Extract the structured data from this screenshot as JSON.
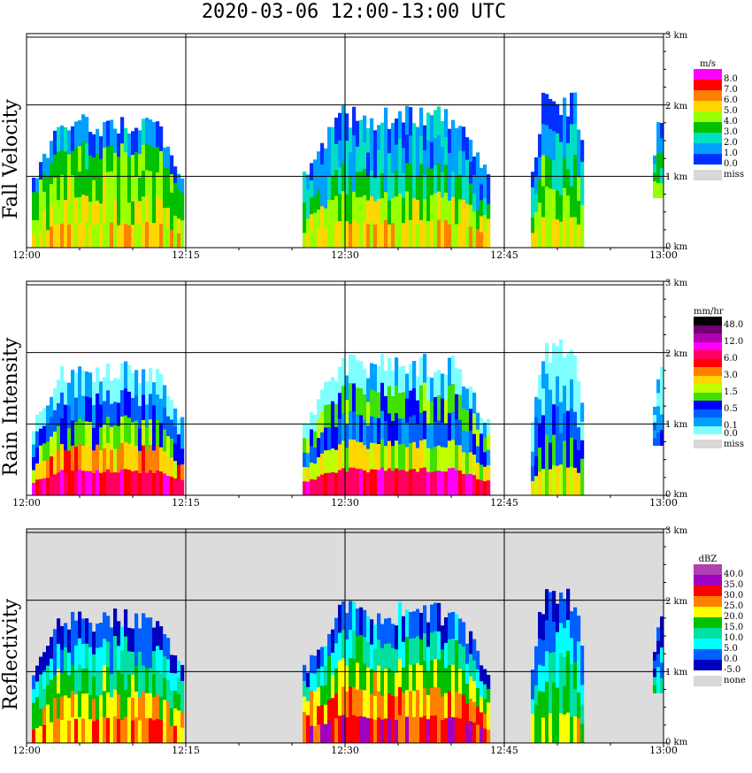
{
  "title": "2020-03-06  12:00-13:00 UTC",
  "chart_data": [
    {
      "type": "heatmap",
      "title": "Fall Velocity",
      "ylabel": "Fall Velocity",
      "x_ticks": [
        "12:00",
        "12:15",
        "12:30",
        "12:45",
        "13:00"
      ],
      "y_ticks": [
        "0 km",
        "1 km",
        "2 km",
        "3 km"
      ],
      "ylim_km": [
        0,
        3.0
      ],
      "xlim_min": [
        0,
        60
      ],
      "grid": true,
      "colorbar": {
        "unit": "m/s",
        "labels": [
          "8.0",
          "7.0",
          "6.0",
          "5.0",
          "4.0",
          "3.0",
          "2.0",
          "1.0",
          "0.0",
          "miss"
        ],
        "colors": [
          "#ff00ff",
          "#ff0000",
          "#ff8000",
          "#ffd700",
          "#9aff00",
          "#00c000",
          "#00e0c0",
          "#00a0ff",
          "#0030ff",
          "#d8d8d8"
        ]
      },
      "background": "#ffffff",
      "echoes": [
        {
          "t0": 0.5,
          "t1": 14.7,
          "top": 1.9,
          "base": 0.0,
          "profile": [
            0.4,
            0.45,
            0.55,
            0.6,
            0.9
          ]
        },
        {
          "t0": 26.0,
          "t1": 43.5,
          "top": 2.0,
          "base": 0.0,
          "profile": [
            0.4,
            0.5,
            0.7,
            0.85,
            0.9
          ]
        },
        {
          "t0": 47.5,
          "t1": 52.5,
          "top": 2.2,
          "base": 0.0,
          "profile": [
            0.45,
            0.55,
            0.65,
            0.8,
            0.95
          ]
        },
        {
          "t0": 59.0,
          "t1": 59.9,
          "top": 1.8,
          "base": 0.7,
          "profile": [
            0.5,
            0.6,
            0.7,
            0.85,
            0.95
          ]
        }
      ]
    },
    {
      "type": "heatmap",
      "title": "Rain Intensity",
      "ylabel": "Rain Intensity",
      "x_ticks": [
        "12:00",
        "12:15",
        "12:30",
        "12:45",
        "13:00"
      ],
      "y_ticks": [
        "0 km",
        "1 km",
        "2 km",
        "3 km"
      ],
      "ylim_km": [
        0,
        3.0
      ],
      "xlim_min": [
        0,
        60
      ],
      "grid": true,
      "colorbar": {
        "unit": "mm/hr",
        "labels": [
          "48.0",
          "",
          "12.0",
          "",
          "6.0",
          "",
          "3.0",
          "",
          "1.5",
          "",
          "0.5",
          "",
          "0.1",
          "0.0",
          "miss"
        ],
        "colors": [
          "#000000",
          "#700070",
          "#b000b0",
          "#ff00ff",
          "#ff0060",
          "#ff0000",
          "#ff8000",
          "#ffd700",
          "#c0ff00",
          "#40e000",
          "#0000ff",
          "#0060ff",
          "#00a0ff",
          "#80ffff",
          "#d8d8d8"
        ]
      },
      "background": "#ffffff",
      "echoes": [
        {
          "t0": 0.5,
          "t1": 14.7,
          "top": 1.9,
          "base": 0.0,
          "profile": [
            0.3,
            0.5,
            0.7,
            0.85,
            1.0
          ]
        },
        {
          "t0": 26.0,
          "t1": 43.5,
          "top": 2.0,
          "base": 0.0,
          "profile": [
            0.3,
            0.6,
            0.85,
            0.7,
            1.0
          ]
        },
        {
          "t0": 47.5,
          "t1": 52.5,
          "top": 2.2,
          "base": 0.0,
          "profile": [
            0.6,
            0.75,
            0.85,
            0.95,
            1.0
          ]
        },
        {
          "t0": 59.0,
          "t1": 59.9,
          "top": 1.8,
          "base": 0.7,
          "profile": [
            0.8,
            0.9,
            0.95,
            1.0,
            1.0
          ]
        }
      ]
    },
    {
      "type": "heatmap",
      "title": "Reflectivity",
      "ylabel": "Reflectivity",
      "x_ticks": [
        "12:00",
        "12:15",
        "12:30",
        "12:45",
        "13:00"
      ],
      "y_ticks": [
        "0 km",
        "1 km",
        "2 km",
        "3 km"
      ],
      "ylim_km": [
        0,
        3.0
      ],
      "xlim_min": [
        0,
        60
      ],
      "grid": true,
      "colorbar": {
        "unit": "dBZ",
        "labels": [
          "40.0",
          "35.0",
          "30.0",
          "25.0",
          "20.0",
          "15.0",
          "10.0",
          "5.0",
          "0.0",
          "-5.0",
          "none"
        ],
        "colors": [
          "#b040b0",
          "#a000c0",
          "#ff0000",
          "#ff8000",
          "#ffff00",
          "#00c000",
          "#00e0a0",
          "#00ffff",
          "#0060ff",
          "#0000c0",
          "#d8d8d8"
        ]
      },
      "background": "#dcdcdc",
      "echoes": [
        {
          "t0": 0.5,
          "t1": 14.7,
          "top": 1.9,
          "base": 0.0,
          "profile": [
            0.35,
            0.45,
            0.6,
            0.75,
            0.95
          ]
        },
        {
          "t0": 26.0,
          "t1": 43.5,
          "top": 2.0,
          "base": 0.0,
          "profile": [
            0.2,
            0.35,
            0.5,
            0.7,
            0.9
          ]
        },
        {
          "t0": 47.5,
          "t1": 52.5,
          "top": 2.2,
          "base": 0.0,
          "profile": [
            0.5,
            0.6,
            0.7,
            0.85,
            0.95
          ]
        },
        {
          "t0": 59.0,
          "t1": 59.9,
          "top": 1.8,
          "base": 0.7,
          "profile": [
            0.7,
            0.8,
            0.9,
            0.95,
            1.0
          ]
        }
      ]
    }
  ]
}
